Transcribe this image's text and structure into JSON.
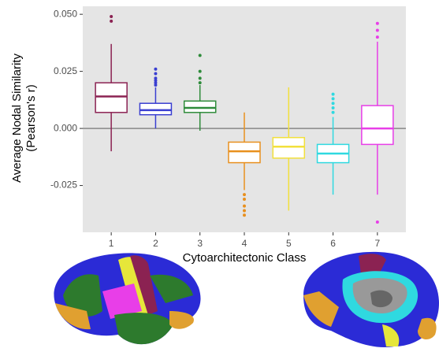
{
  "chart_data": {
    "type": "box",
    "y_label": [
      "Average Nodal Similarity",
      "(Pearson's r)"
    ],
    "x_label": "Cytoarchitectonic Class",
    "categories": [
      "1",
      "2",
      "3",
      "4",
      "5",
      "6",
      "7"
    ],
    "colors": [
      "#8b2252",
      "#3a3fd1",
      "#2e8b3a",
      "#e8901e",
      "#f2e03c",
      "#2fd9e0",
      "#e83ee8"
    ],
    "boxes": [
      {
        "min": -0.01,
        "q1": 0.007,
        "median": 0.014,
        "q3": 0.02,
        "max": 0.037,
        "outliers": [
          0.047,
          0.049
        ]
      },
      {
        "min": 0.0,
        "q1": 0.006,
        "median": 0.008,
        "q3": 0.011,
        "max": 0.018,
        "outliers": [
          0.019,
          0.02,
          0.021,
          0.022,
          0.024,
          0.026
        ]
      },
      {
        "min": -0.001,
        "q1": 0.007,
        "median": 0.009,
        "q3": 0.012,
        "max": 0.019,
        "outliers": [
          0.02,
          0.022,
          0.025,
          0.032
        ]
      },
      {
        "min": -0.027,
        "q1": -0.015,
        "median": -0.01,
        "q3": -0.006,
        "max": 0.007,
        "outliers": [
          -0.029,
          -0.031,
          -0.034,
          -0.036,
          -0.038
        ]
      },
      {
        "min": -0.036,
        "q1": -0.013,
        "median": -0.008,
        "q3": -0.004,
        "max": 0.018,
        "outliers": []
      },
      {
        "min": -0.029,
        "q1": -0.015,
        "median": -0.011,
        "q3": -0.007,
        "max": 0.005,
        "outliers": [
          0.007,
          0.009,
          0.011,
          0.013,
          0.015
        ]
      },
      {
        "min": -0.029,
        "q1": -0.007,
        "median": 0.0,
        "q3": 0.01,
        "max": 0.038,
        "outliers": [
          0.04,
          0.043,
          0.046,
          -0.041
        ]
      }
    ],
    "hline": 0,
    "ylim": [
      -0.0455,
      0.0535
    ],
    "yticks": [
      {
        "value": 0.05,
        "label": "0.050"
      },
      0.025,
      {
        "value": 0,
        "label": "0.000"
      },
      -0.025
    ],
    "grid": false
  }
}
